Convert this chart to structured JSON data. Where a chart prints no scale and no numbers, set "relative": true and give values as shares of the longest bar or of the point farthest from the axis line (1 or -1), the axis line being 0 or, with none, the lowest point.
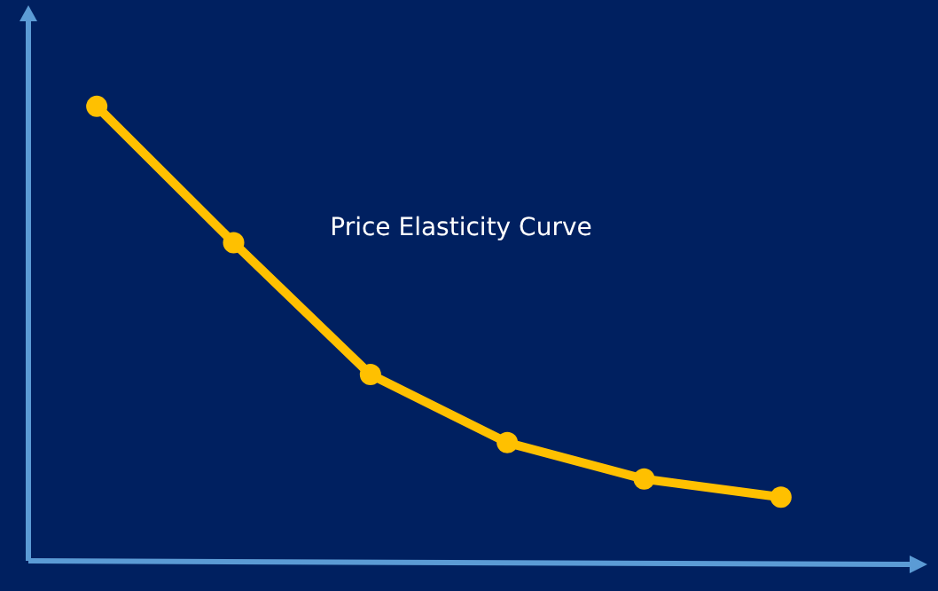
{
  "chart_data": {
    "type": "line",
    "title": "Price Elasticity Curve",
    "relative": true,
    "categories": [
      null,
      null,
      null,
      null,
      null,
      null
    ],
    "marker": "circle",
    "line_style": "solid",
    "series": [
      {
        "color": "#ffc000",
        "values": [
          1,
          0.7,
          0.41,
          0.26,
          0.18,
          0.14
        ]
      }
    ]
  }
}
